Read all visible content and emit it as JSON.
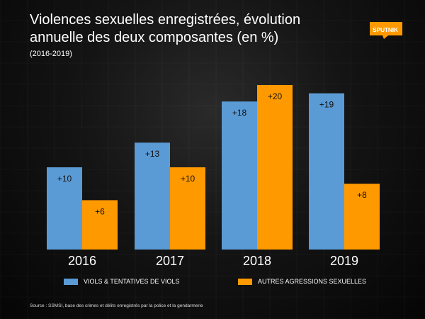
{
  "header": {
    "title": "Violences sexuelles enregistrées, évolution annuelle des deux composantes (en %)",
    "subtitle": "(2016-2019)"
  },
  "brand": {
    "logo_text": "SPUTNIK",
    "accent": "#ff9900"
  },
  "colors": {
    "blue": "#5b9bd5",
    "orange": "#ff9900"
  },
  "chart_data": {
    "type": "bar",
    "title": "Violences sexuelles enregistrées, évolution annuelle des deux composantes (en %)",
    "categories": [
      "2016",
      "2017",
      "2018",
      "2019"
    ],
    "series": [
      {
        "name": "VIOLS & TENTATIVES DE VIOLS",
        "color": "#5b9bd5",
        "values": [
          10,
          13,
          18,
          19
        ],
        "labels": [
          "+10",
          "+13",
          "+18",
          "+19"
        ]
      },
      {
        "name": "AUTRES AGRESSIONS SEXUELLES",
        "color": "#ff9900",
        "values": [
          6,
          10,
          20,
          8
        ],
        "labels": [
          "+6",
          "+10",
          "+20",
          "+8"
        ]
      }
    ],
    "ylim": [
      0,
      20
    ],
    "xlabel": "",
    "ylabel": "",
    "grid": false,
    "legend": "bottom"
  },
  "source": "Source : SSMSI, base des crimes et délits enregistrés par la police et la gendarmerie"
}
